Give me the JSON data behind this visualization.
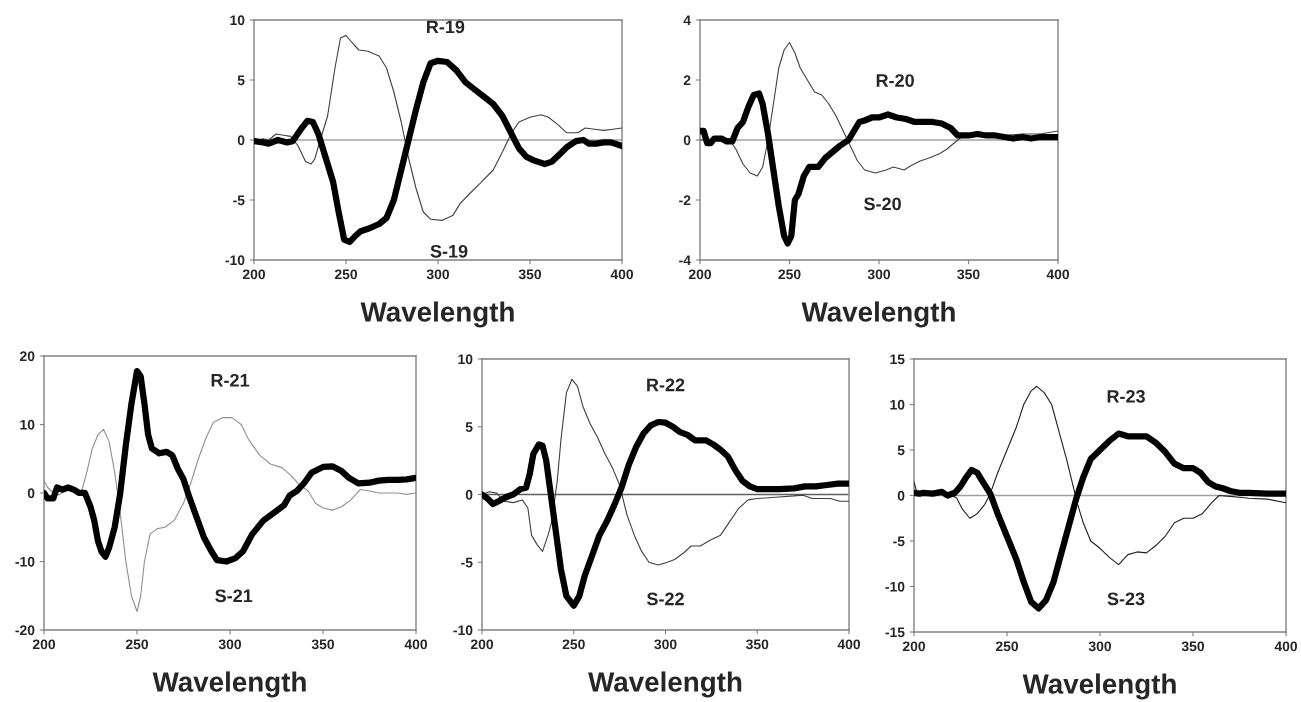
{
  "chart_data": [
    {
      "type": "line",
      "xlabel": "Wavelength",
      "xlim": [
        200,
        400
      ],
      "xticks": [
        200,
        250,
        300,
        350,
        400
      ],
      "ylim": [
        -10,
        10
      ],
      "yticks": [
        -10,
        -5,
        0,
        5,
        10
      ],
      "grid": false,
      "legend": false,
      "ref_lines": [
        {
          "axis": "y",
          "value": 0,
          "color": "#a0a0a0"
        }
      ],
      "series": [
        {
          "name": "R-19",
          "color": "#000000",
          "x": [
            200,
            205,
            208,
            213,
            218,
            221,
            225,
            229,
            232,
            235,
            240,
            243,
            246,
            249,
            252,
            255,
            258,
            262,
            268,
            272,
            276,
            280,
            284,
            288,
            292,
            296,
            300,
            305,
            310,
            315,
            320,
            325,
            330,
            335,
            340,
            344,
            348,
            352,
            358,
            362,
            366,
            370,
            375,
            379,
            382,
            386,
            390,
            394,
            398,
            400
          ],
          "values": [
            -0.1,
            -0.2,
            -0.3,
            0,
            -0.2,
            -0.1,
            0.8,
            1.6,
            1.5,
            0.5,
            -2,
            -3.5,
            -6,
            -8.3,
            -8.5,
            -8,
            -7.6,
            -7.4,
            -7,
            -6.5,
            -5,
            -2.5,
            0,
            2.5,
            4.8,
            6.4,
            6.6,
            6.5,
            5.8,
            4.8,
            4.2,
            3.6,
            3,
            2,
            0.5,
            -0.7,
            -1.4,
            -1.7,
            -2,
            -1.8,
            -1.2,
            -0.6,
            -0.1,
            0,
            -0.3,
            -0.3,
            -0.2,
            -0.2,
            -0.4,
            -0.5
          ]
        },
        {
          "name": "S-19",
          "color": "#404040",
          "x": [
            200,
            205,
            208,
            212,
            216,
            220,
            224,
            228,
            231,
            233,
            236,
            240,
            244,
            247,
            250,
            254,
            257,
            262,
            268,
            272,
            276,
            280,
            284,
            288,
            292,
            296,
            302,
            308,
            312,
            317,
            323,
            330,
            335,
            340,
            344,
            350,
            356,
            360,
            365,
            370,
            376,
            380,
            385,
            390,
            395,
            400
          ],
          "values": [
            -0.1,
            0.1,
            0,
            0.5,
            0.4,
            0.3,
            -0.5,
            -1.8,
            -2,
            -1.6,
            0,
            2,
            6,
            8.5,
            8.7,
            8,
            7.5,
            7.4,
            7,
            6,
            4,
            1.5,
            -1.5,
            -4,
            -6,
            -6.6,
            -6.7,
            -6.3,
            -5.3,
            -4.5,
            -3.6,
            -2.5,
            -1,
            0.6,
            1.5,
            1.9,
            2.1,
            1.9,
            1.3,
            0.6,
            0.6,
            1,
            0.9,
            0.8,
            0.9,
            1
          ]
        }
      ]
    },
    {
      "type": "line",
      "xlabel": "Wavelength",
      "xlim": [
        200,
        400
      ],
      "xticks": [
        200,
        250,
        300,
        350,
        400
      ],
      "ylim": [
        -4,
        4
      ],
      "yticks": [
        -4,
        -2,
        0,
        2,
        4
      ],
      "grid": false,
      "legend": false,
      "ref_lines": [
        {
          "axis": "y",
          "value": 0,
          "color": "#a0a0a0"
        }
      ],
      "series": [
        {
          "name": "R-20",
          "color": "#000000",
          "x": [
            200,
            202,
            204,
            206,
            208,
            212,
            215,
            218,
            221,
            224,
            227,
            230,
            233,
            235,
            238,
            241,
            244,
            247,
            249,
            251,
            253,
            255,
            258,
            261,
            266,
            270,
            274,
            278,
            283,
            286,
            289,
            292,
            296,
            300,
            305,
            310,
            315,
            320,
            325,
            330,
            335,
            340,
            344,
            350,
            355,
            360,
            365,
            370,
            375,
            380,
            385,
            390,
            395,
            400
          ],
          "values": [
            0.3,
            0.3,
            -0.1,
            -0.1,
            0.05,
            0.05,
            -0.05,
            -0.05,
            0.4,
            0.6,
            1.1,
            1.5,
            1.55,
            1.2,
            0.2,
            -1,
            -2.2,
            -3.2,
            -3.45,
            -3.2,
            -2,
            -1.8,
            -1.2,
            -0.9,
            -0.9,
            -0.6,
            -0.4,
            -0.2,
            0,
            0.3,
            0.6,
            0.65,
            0.75,
            0.75,
            0.85,
            0.75,
            0.7,
            0.6,
            0.6,
            0.6,
            0.55,
            0.4,
            0.15,
            0.15,
            0.2,
            0.15,
            0.15,
            0.1,
            0.05,
            0.1,
            0.05,
            0.1,
            0.1,
            0.1
          ]
        },
        {
          "name": "S-20",
          "color": "#404040",
          "x": [
            200,
            210,
            216,
            220,
            224,
            228,
            232,
            235,
            238,
            241,
            244,
            247,
            250,
            253,
            256,
            260,
            264,
            268,
            272,
            276,
            280,
            284,
            288,
            292,
            298,
            304,
            308,
            314,
            318,
            323,
            328,
            334,
            338,
            342,
            346,
            350,
            360,
            370,
            380,
            390,
            400
          ],
          "values": [
            0,
            0.05,
            0.05,
            -0.3,
            -0.8,
            -1.1,
            -1.2,
            -0.9,
            0,
            1.2,
            2.4,
            3,
            3.25,
            2.9,
            2.4,
            2,
            1.6,
            1.5,
            1.2,
            0.8,
            0.3,
            -0.2,
            -0.7,
            -1,
            -1.1,
            -1,
            -0.9,
            -1,
            -0.85,
            -0.7,
            -0.6,
            -0.45,
            -0.3,
            -0.1,
            0.1,
            0.15,
            0.2,
            0.15,
            0.2,
            0.2,
            0.3
          ]
        }
      ]
    },
    {
      "type": "line",
      "xlabel": "Wavelength",
      "xlim": [
        200,
        400
      ],
      "xticks": [
        200,
        250,
        300,
        350,
        400
      ],
      "ylim": [
        -20,
        20
      ],
      "yticks": [
        -20,
        -10,
        0,
        10,
        20
      ],
      "grid": false,
      "legend": false,
      "series": [
        {
          "name": "S-21",
          "color": "#000000",
          "x": [
            200,
            202,
            205,
            207,
            210,
            213,
            216,
            219,
            222,
            225,
            227,
            229,
            231,
            233,
            235,
            238,
            241,
            244,
            247,
            250,
            252,
            254,
            256,
            258,
            262,
            266,
            269,
            272,
            275,
            278,
            282,
            286,
            290,
            293,
            298,
            303,
            307,
            312,
            318,
            324,
            329,
            332,
            336,
            340,
            344,
            350,
            355,
            360,
            364,
            369,
            375,
            380,
            385,
            390,
            395,
            400
          ],
          "values": [
            0,
            -0.8,
            -0.8,
            0.8,
            0.5,
            0.8,
            0.5,
            0,
            0,
            -2,
            -4,
            -7,
            -8.6,
            -9.3,
            -8,
            -5,
            0,
            7,
            13,
            17.8,
            17,
            13,
            8.5,
            6.5,
            5.8,
            6,
            5.5,
            3.5,
            2,
            -0.5,
            -3.5,
            -6.5,
            -8.5,
            -9.8,
            -10,
            -9.5,
            -8.5,
            -6,
            -4,
            -2.8,
            -1.8,
            -0.4,
            0.3,
            1.5,
            3,
            3.8,
            3.9,
            3.2,
            2.2,
            1.4,
            1.5,
            1.8,
            1.9,
            1.9,
            2,
            2.2
          ]
        },
        {
          "name": "R-21",
          "color": "#909090",
          "x": [
            200,
            202,
            205,
            208,
            212,
            216,
            220,
            223,
            226,
            229,
            232,
            235,
            238,
            241,
            244,
            247,
            250,
            252,
            254,
            257,
            261,
            265,
            270,
            275,
            279,
            283,
            287,
            291,
            296,
            301,
            306,
            310,
            316,
            322,
            328,
            333,
            337,
            342,
            346,
            350,
            355,
            360,
            365,
            370,
            375,
            380,
            390,
            395,
            400
          ],
          "values": [
            1.8,
            0.8,
            0,
            -0.3,
            0.5,
            0.2,
            0,
            3,
            6.5,
            8.5,
            9.3,
            7.5,
            3,
            -3,
            -10,
            -15,
            -17.3,
            -15,
            -10,
            -6,
            -5.2,
            -5,
            -4,
            -1.5,
            1.5,
            5,
            8,
            10.3,
            11,
            11,
            10,
            7.8,
            5.5,
            4.2,
            3.7,
            2.5,
            1.3,
            0.3,
            -1.5,
            -2.2,
            -2.5,
            -2,
            -1,
            0.5,
            0.3,
            0,
            0,
            -0.2,
            0
          ]
        }
      ]
    },
    {
      "type": "line",
      "xlabel": "Wavelength",
      "xlim": [
        200,
        400
      ],
      "xticks": [
        200,
        250,
        300,
        350,
        400
      ],
      "ylim": [
        -10,
        10
      ],
      "yticks": [
        -10,
        -5,
        0,
        5,
        10
      ],
      "grid": false,
      "legend": false,
      "ref_lines": [
        {
          "axis": "y",
          "value": 0,
          "color": "#606060"
        }
      ],
      "series": [
        {
          "name": "R-22",
          "color": "#000000",
          "x": [
            200,
            203,
            206,
            209,
            213,
            217,
            221,
            224,
            226,
            228,
            231,
            233,
            235,
            237,
            240,
            243,
            246,
            250,
            253,
            256,
            260,
            264,
            268,
            272,
            276,
            280,
            284,
            288,
            292,
            296,
            300,
            304,
            308,
            312,
            316,
            322,
            326,
            330,
            334,
            338,
            342,
            346,
            350,
            355,
            362,
            370,
            376,
            382,
            388,
            394,
            400
          ],
          "values": [
            0,
            -0.3,
            -0.7,
            -0.5,
            -0.2,
            0,
            0.4,
            0.5,
            1.5,
            3,
            3.7,
            3.6,
            2.5,
            0.5,
            -2.5,
            -5.5,
            -7.5,
            -8.2,
            -7.5,
            -6,
            -4.5,
            -3,
            -2,
            -0.8,
            0.5,
            2.2,
            3.5,
            4.5,
            5.1,
            5.35,
            5.3,
            5,
            4.6,
            4.4,
            4,
            4,
            3.7,
            3.3,
            2.8,
            1.8,
            1,
            0.6,
            0.4,
            0.4,
            0.4,
            0.45,
            0.6,
            0.6,
            0.7,
            0.8,
            0.8
          ]
        },
        {
          "name": "S-22",
          "color": "#404040",
          "x": [
            200,
            204,
            208,
            212,
            217,
            222,
            225,
            227,
            230,
            233,
            236,
            238,
            241,
            243,
            246,
            249,
            252,
            255,
            259,
            263,
            267,
            271,
            275,
            279,
            283,
            287,
            291,
            296,
            301,
            305,
            310,
            314,
            319,
            324,
            330,
            335,
            340,
            345,
            350,
            360,
            370,
            375,
            380,
            390,
            395,
            400
          ],
          "values": [
            0,
            0.2,
            0.1,
            -0.5,
            -0.6,
            -0.4,
            -1,
            -3,
            -3.7,
            -4.2,
            -3,
            -2,
            1,
            4,
            7.5,
            8.5,
            8,
            6.5,
            5.2,
            4.2,
            3,
            2,
            0.7,
            -1.5,
            -3,
            -4.2,
            -5,
            -5.2,
            -5,
            -4.8,
            -4.3,
            -3.8,
            -3.8,
            -3.4,
            -3,
            -2,
            -1,
            -0.4,
            -0.3,
            -0.2,
            -0.1,
            -0.05,
            -0.3,
            -0.3,
            -0.5,
            -0.5
          ]
        }
      ]
    },
    {
      "type": "line",
      "xlabel": "Wavelength",
      "xlim": [
        200,
        400
      ],
      "xticks": [
        200,
        250,
        300,
        350,
        400
      ],
      "ylim": [
        -15,
        15
      ],
      "yticks": [
        -15,
        -10,
        -5,
        0,
        5,
        10,
        15
      ],
      "grid": false,
      "legend": false,
      "ref_lines": [
        {
          "axis": "y",
          "value": 0,
          "color": "#a0a0a0"
        }
      ],
      "series": [
        {
          "name": "R-23",
          "color": "#000000",
          "x": [
            200,
            203,
            205,
            210,
            215,
            218,
            222,
            225,
            228,
            231,
            234,
            237,
            241,
            245,
            250,
            255,
            259,
            263,
            267,
            271,
            275,
            279,
            283,
            287,
            291,
            295,
            300,
            305,
            310,
            315,
            320,
            325,
            330,
            335,
            340,
            345,
            350,
            354,
            358,
            362,
            366,
            370,
            375,
            380,
            390,
            400
          ],
          "values": [
            0.3,
            0.2,
            0.3,
            0.2,
            0.4,
            0,
            0.3,
            1,
            2,
            2.8,
            2.5,
            1.5,
            0.2,
            -2,
            -4.5,
            -7,
            -9.5,
            -11.7,
            -12.4,
            -11.5,
            -9.5,
            -6.5,
            -3.5,
            -0.5,
            2,
            4,
            5,
            6,
            6.8,
            6.5,
            6.5,
            6.5,
            5.8,
            4.8,
            3.5,
            3,
            3,
            2.5,
            1.5,
            1,
            0.8,
            0.5,
            0.3,
            0.3,
            0.2,
            0.2
          ]
        },
        {
          "name": "S-23",
          "color": "#202020",
          "x": [
            200,
            202,
            210,
            220,
            223,
            226,
            230,
            234,
            238,
            241,
            245,
            250,
            255,
            259,
            263,
            266,
            270,
            274,
            278,
            282,
            285,
            288,
            291,
            295,
            300,
            305,
            310,
            315,
            320,
            325,
            330,
            335,
            340,
            345,
            350,
            355,
            360,
            364,
            370,
            375,
            380,
            390,
            400
          ],
          "values": [
            1.5,
            0,
            0.2,
            0.1,
            -0.3,
            -1.5,
            -2.5,
            -2,
            -1,
            0.2,
            2.5,
            5,
            7.5,
            10,
            11.5,
            12,
            11.3,
            10,
            7,
            4,
            1.5,
            -1,
            -3,
            -5,
            -5.8,
            -6.8,
            -7.6,
            -6.5,
            -6.2,
            -6.3,
            -5.5,
            -4.5,
            -3,
            -2.5,
            -2.5,
            -2,
            -0.8,
            0,
            -0.1,
            -0.2,
            -0.3,
            -0.4,
            -0.8
          ]
        }
      ]
    }
  ]
}
